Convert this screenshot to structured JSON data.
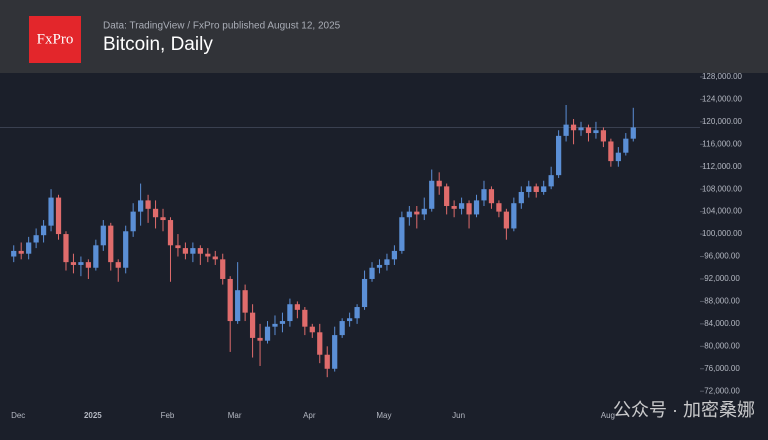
{
  "chart_data": {
    "type": "candlestick",
    "logo": "FxPro",
    "subtitle": "Data: TradingView / FxPro published August 12, 2025",
    "title": "Bitcoin, Daily",
    "watermark": "公众号 · 加密桑娜",
    "up_color": "#5b8fd6",
    "down_color": "#e06c6c",
    "categories": [
      null,
      "Dec",
      null,
      null,
      null,
      null,
      null,
      null,
      null,
      null,
      null,
      "2025",
      null,
      null,
      null,
      null,
      null,
      null,
      null,
      null,
      null,
      "Feb",
      null,
      null,
      null,
      null,
      null,
      null,
      null,
      null,
      "Mar",
      null,
      null,
      null,
      null,
      null,
      null,
      null,
      null,
      null,
      "Apr",
      null,
      null,
      null,
      null,
      null,
      null,
      null,
      null,
      null,
      "May",
      null,
      null,
      null,
      null,
      null,
      null,
      null,
      null,
      null,
      "Jun",
      null,
      null,
      null,
      null,
      null,
      null,
      null,
      null,
      null,
      null,
      null,
      null,
      null,
      null,
      null,
      null,
      null,
      null,
      null,
      "Aug",
      null,
      null,
      null
    ],
    "open": [
      96000,
      97000,
      96500,
      98500,
      99800,
      101500,
      106500,
      100000,
      95000,
      94500,
      95000,
      94000,
      98000,
      101500,
      95000,
      94000,
      100500,
      104000,
      106000,
      104500,
      103000,
      102500,
      98000,
      97500,
      96500,
      97500,
      96500,
      96000,
      95500,
      92000,
      84500,
      90000,
      86000,
      81500,
      81000,
      83500,
      84000,
      84500,
      87500,
      86500,
      83500,
      82500,
      78500,
      76000,
      82000,
      84500,
      85000,
      87000,
      92000,
      94000,
      94500,
      95500,
      97000,
      103000,
      104000,
      103500,
      104500,
      109500,
      108500,
      105000,
      104500,
      105500,
      103500,
      106000,
      108000,
      105500,
      104000,
      101000,
      105500,
      107500,
      108500,
      107500,
      108500,
      110500,
      117500,
      119500,
      118500,
      119000,
      118000,
      118500,
      116500,
      113000,
      114500,
      117000
    ],
    "high": [
      98000,
      98500,
      99500,
      101000,
      102500,
      108000,
      107000,
      100500,
      96500,
      96000,
      95500,
      99000,
      102500,
      102000,
      95500,
      101500,
      105500,
      109000,
      107000,
      106000,
      104500,
      103000,
      100000,
      98500,
      98500,
      98000,
      97500,
      97000,
      96500,
      92500,
      95000,
      91000,
      87500,
      84000,
      84500,
      85500,
      86000,
      88500,
      88000,
      87000,
      84000,
      84000,
      80000,
      83500,
      85000,
      86000,
      87500,
      93500,
      95000,
      95500,
      96500,
      98000,
      104000,
      105000,
      105000,
      106500,
      111500,
      111000,
      109000,
      106000,
      106500,
      106000,
      107000,
      109500,
      108500,
      106000,
      104500,
      106500,
      108500,
      109500,
      109000,
      109500,
      112000,
      118500,
      123000,
      120500,
      120000,
      119500,
      120000,
      119000,
      117000,
      115500,
      118000,
      122500
    ],
    "low": [
      95000,
      95500,
      95500,
      97500,
      98500,
      100500,
      99000,
      93500,
      93000,
      92500,
      92000,
      93500,
      97000,
      93500,
      91500,
      93000,
      99500,
      101500,
      102000,
      101000,
      100500,
      91500,
      96000,
      95500,
      95000,
      94500,
      95000,
      94500,
      91000,
      79000,
      84000,
      84500,
      78000,
      76500,
      80500,
      82000,
      82500,
      83500,
      85000,
      82000,
      81500,
      77000,
      74500,
      75500,
      81500,
      83500,
      84000,
      86500,
      91500,
      93000,
      93500,
      94500,
      96500,
      101500,
      101000,
      102500,
      104000,
      107000,
      103500,
      103000,
      103500,
      101000,
      103000,
      105000,
      104500,
      103000,
      99000,
      100500,
      104500,
      106500,
      106500,
      107000,
      108000,
      110000,
      116500,
      116000,
      117500,
      116500,
      117000,
      115500,
      112000,
      112000,
      114000,
      116500
    ],
    "close": [
      97000,
      96500,
      98500,
      99800,
      101500,
      106500,
      100000,
      95000,
      94500,
      95000,
      94000,
      98000,
      101500,
      95000,
      94000,
      100500,
      104000,
      106000,
      104500,
      103000,
      102500,
      98000,
      97500,
      96500,
      97500,
      96500,
      96000,
      95500,
      92000,
      84500,
      90000,
      86000,
      81500,
      81000,
      83500,
      84000,
      84500,
      87500,
      86500,
      83500,
      82500,
      78500,
      76000,
      82000,
      84500,
      85000,
      87000,
      92000,
      94000,
      94500,
      95500,
      97000,
      103000,
      104000,
      103500,
      104500,
      109500,
      108500,
      105000,
      104500,
      105500,
      103500,
      106000,
      108000,
      105500,
      104000,
      101000,
      105500,
      107500,
      108500,
      107500,
      108500,
      110500,
      117500,
      119500,
      118500,
      119000,
      118000,
      118500,
      116500,
      113000,
      114500,
      117000,
      119000
    ],
    "ylim": [
      69900,
      128700
    ],
    "yticks": [
      {
        "value": 72000,
        "label": "72,000.00"
      },
      {
        "value": 76000,
        "label": "76,000.00"
      },
      {
        "value": 80000,
        "label": "80,000.00"
      },
      {
        "value": 84000,
        "label": "84,000.00"
      },
      {
        "value": 88000,
        "label": "88,000.00"
      },
      {
        "value": 92000,
        "label": "92,000.00"
      },
      {
        "value": 96000,
        "label": "96,000.00"
      },
      {
        "value": 100000,
        "label": "100,000.00"
      },
      {
        "value": 104000,
        "label": "104,000.00"
      },
      {
        "value": 108000,
        "label": "108,000.00"
      },
      {
        "value": 112000,
        "label": "112,000.00"
      },
      {
        "value": 116000,
        "label": "116,000.00"
      },
      {
        "value": 120000,
        "label": "120,000.00"
      },
      {
        "value": 124000,
        "label": "124,000.00"
      },
      {
        "value": 128000,
        "label": "128,000.00"
      }
    ],
    "grid": false
  }
}
